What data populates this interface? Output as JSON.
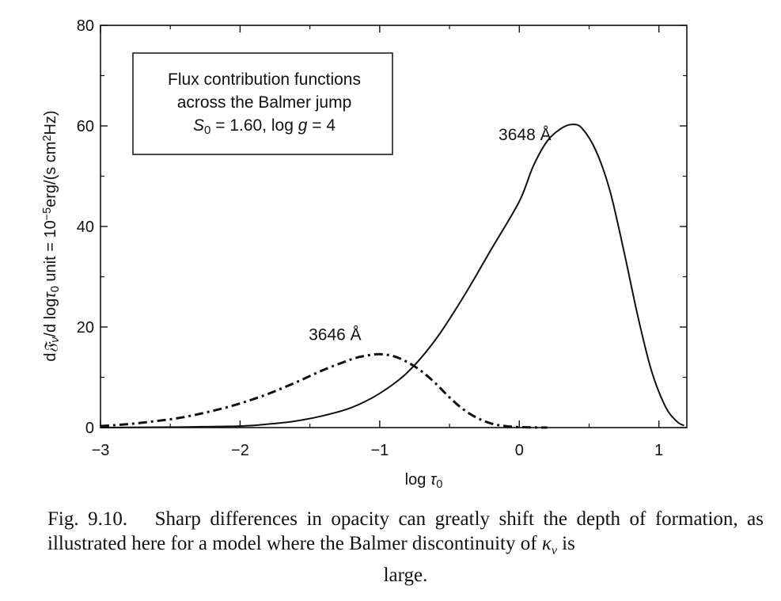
{
  "chart_data": {
    "type": "line",
    "xlabel_base": "log",
    "xlabel_sym": "τ",
    "xlabel_sub": "0",
    "ylabel_parts": [
      {
        "t": "d"
      },
      {
        "t": "𝔉",
        "it": true
      },
      {
        "t": "ν",
        "sub": true,
        "it": true
      },
      {
        "t": "/d log"
      },
      {
        "t": "τ",
        "it": true
      },
      {
        "t": "0",
        "sub": true
      },
      {
        "t": " unit = 10"
      },
      {
        "t": "−5",
        "sup": true
      },
      {
        "t": "erg/(s cm"
      },
      {
        "t": "2",
        "sup": true
      },
      {
        "t": "Hz)"
      }
    ],
    "xlim": [
      -3,
      1.2
    ],
    "ylim": [
      0,
      80
    ],
    "x_ticks": [
      -3,
      -2,
      -1,
      0,
      1
    ],
    "x_tick_labels": [
      "−3",
      "−2",
      "−1",
      "0",
      "1"
    ],
    "y_ticks": [
      0,
      20,
      40,
      60,
      80
    ],
    "y_tick_labels": [
      "0",
      "20",
      "40",
      "60",
      "80"
    ],
    "legend_box_lines": [
      [
        {
          "t": "Flux contribution functions"
        }
      ],
      [
        {
          "t": "across the Balmer jump"
        }
      ],
      [
        {
          "t": "S",
          "it": true
        },
        {
          "t": "0",
          "sub": true
        },
        {
          "t": " = 1.60, log "
        },
        {
          "t": "g",
          "it": true
        },
        {
          "t": " = 4"
        }
      ]
    ],
    "legend_position": "top-left",
    "grid": false,
    "series": [
      {
        "name": "3648 Å",
        "style": "solid",
        "x": [
          -3.0,
          -2.5,
          -2.0,
          -1.8,
          -1.6,
          -1.4,
          -1.2,
          -1.0,
          -0.8,
          -0.6,
          -0.4,
          -0.2,
          0.0,
          0.1,
          0.2,
          0.3,
          0.38,
          0.45,
          0.55,
          0.65,
          0.75,
          0.85,
          0.95,
          1.05,
          1.13,
          1.18
        ],
        "y": [
          0.0,
          0.1,
          0.3,
          0.7,
          1.3,
          2.4,
          4.0,
          6.8,
          11.0,
          17.5,
          26.0,
          35.5,
          45.0,
          52.0,
          57.0,
          59.5,
          60.3,
          59.5,
          55.0,
          47.0,
          35.0,
          22.0,
          11.0,
          4.0,
          1.2,
          0.4
        ]
      },
      {
        "name": "3646 Å",
        "style": "dash-dot",
        "x": [
          -3.0,
          -2.8,
          -2.6,
          -2.4,
          -2.2,
          -2.0,
          -1.8,
          -1.6,
          -1.4,
          -1.2,
          -1.1,
          -1.0,
          -0.9,
          -0.8,
          -0.7,
          -0.6,
          -0.5,
          -0.4,
          -0.3,
          -0.2,
          -0.1,
          0.0,
          0.2
        ],
        "y": [
          0.3,
          0.7,
          1.3,
          2.1,
          3.3,
          4.8,
          6.7,
          9.0,
          11.5,
          13.6,
          14.3,
          14.6,
          14.2,
          13.0,
          11.2,
          8.8,
          6.0,
          3.6,
          1.9,
          0.8,
          0.3,
          0.1,
          0.0
        ]
      }
    ],
    "annotations": [
      {
        "text": "3648 Å",
        "x": 0.04,
        "y": 57.2,
        "anchor": "middle"
      },
      {
        "text": "3646 Å",
        "x": -1.32,
        "y": 17.4,
        "anchor": "middle"
      }
    ]
  },
  "caption": {
    "label": "Fig. 9.10.",
    "text_main": "Sharp differences in opacity can greatly shift the depth of formation, as illustrated here for a model where the Balmer discontinuity of ",
    "kappa": "κ",
    "kappa_sub": "ν",
    "text_mid": " is",
    "text_last": "large."
  }
}
